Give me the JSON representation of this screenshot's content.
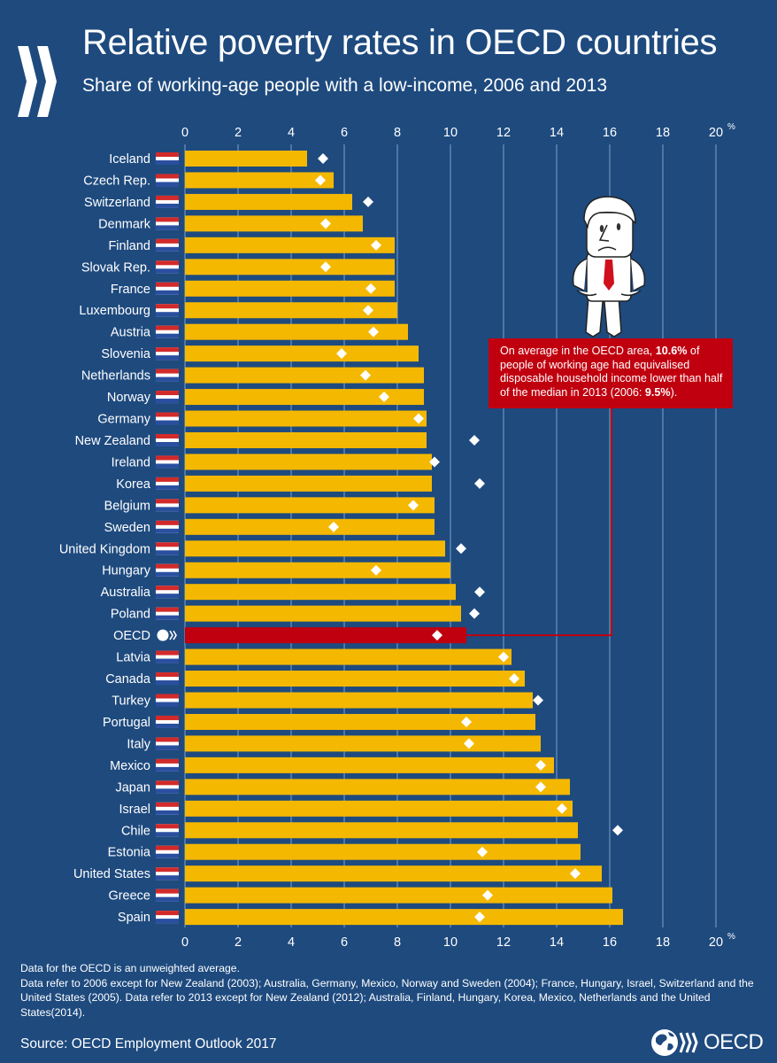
{
  "header": {
    "title": "Relative poverty rates in OECD countries",
    "subtitle": "Share of working-age people with a low-income, 2006 and 2013"
  },
  "colors": {
    "background": "#1e4a7e",
    "bar_2013": "#f5b800",
    "bar_oecd": "#c0000f",
    "marker_2006": "#ffffff",
    "gridline": "#7fa3cc",
    "annotation_bg": "#c0000f"
  },
  "annotation": {
    "part1": "On average in the OECD area, ",
    "bold1": "10.6%",
    "part2": " of people of working age had equivalised disposable household income lower than half of the median in 2013 (2006: ",
    "bold2": "9.5%",
    "part3": ")."
  },
  "footnotes": [
    "Data for the OECD is an unweighted average.",
    "Data refer to 2006 except for New Zealand (2003); Australia, Germany, Mexico, Norway and Sweden (2004); France, Hungary, Israel, Switzerland and the United States (2005). Data refer to 2013 except for New Zealand (2012); Australia, Finland, Hungary, Korea, Mexico, Netherlands and the United States(2014)."
  ],
  "source": "Source: OECD Employment Outlook 2017",
  "logo": {
    "word": "OECD",
    "icon": "oecd-globe-logo-icon"
  },
  "chart_data": {
    "type": "bar",
    "orientation": "horizontal",
    "title": "Relative poverty rates in OECD countries",
    "subtitle": "Share of working-age people with a low-income, 2006 and 2013",
    "xlabel": "",
    "x_unit": "%",
    "xlim": [
      0,
      20
    ],
    "xticks": [
      0,
      2,
      4,
      6,
      8,
      10,
      12,
      14,
      16,
      18,
      20
    ],
    "grid": true,
    "axis_labels_position": "top-and-bottom",
    "highlight_category": "OECD",
    "categories": [
      "Iceland",
      "Czech Rep.",
      "Switzerland",
      "Denmark",
      "Finland",
      "Slovak Rep.",
      "France",
      "Luxembourg",
      "Austria",
      "Slovenia",
      "Netherlands",
      "Norway",
      "Germany",
      "New Zealand",
      "Ireland",
      "Korea",
      "Belgium",
      "Sweden",
      "United Kingdom",
      "Hungary",
      "Australia",
      "Poland",
      "OECD",
      "Latvia",
      "Canada",
      "Turkey",
      "Portugal",
      "Italy",
      "Mexico",
      "Japan",
      "Israel",
      "Chile",
      "Estonia",
      "United States",
      "Greece",
      "Spain"
    ],
    "flag_icons": [
      "flag-iceland-icon",
      "flag-czech-icon",
      "flag-switzerland-icon",
      "flag-denmark-icon",
      "flag-finland-icon",
      "flag-slovakia-icon",
      "flag-france-icon",
      "flag-luxembourg-icon",
      "flag-austria-icon",
      "flag-slovenia-icon",
      "flag-netherlands-icon",
      "flag-norway-icon",
      "flag-germany-icon",
      "flag-new-zealand-icon",
      "flag-ireland-icon",
      "flag-korea-icon",
      "flag-belgium-icon",
      "flag-sweden-icon",
      "flag-uk-icon",
      "flag-hungary-icon",
      "flag-australia-icon",
      "flag-poland-icon",
      "oecd-logo-icon",
      "flag-latvia-icon",
      "flag-canada-icon",
      "flag-turkey-icon",
      "flag-portugal-icon",
      "flag-italy-icon",
      "flag-mexico-icon",
      "flag-japan-icon",
      "flag-israel-icon",
      "flag-chile-icon",
      "flag-estonia-icon",
      "flag-usa-icon",
      "flag-greece-icon",
      "flag-spain-icon"
    ],
    "series": [
      {
        "name": "2013",
        "mark": "bar",
        "values": [
          4.6,
          5.6,
          6.3,
          6.7,
          7.9,
          7.9,
          7.9,
          8.0,
          8.4,
          8.8,
          9.0,
          9.0,
          9.1,
          9.1,
          9.3,
          9.3,
          9.4,
          9.4,
          9.8,
          10.0,
          10.2,
          10.4,
          10.6,
          12.3,
          12.8,
          13.1,
          13.2,
          13.4,
          13.9,
          14.5,
          14.6,
          14.8,
          14.9,
          15.7,
          16.1,
          16.5
        ]
      },
      {
        "name": "2006",
        "mark": "diamond",
        "values": [
          5.2,
          5.1,
          6.9,
          5.3,
          7.2,
          5.3,
          7.0,
          6.9,
          7.1,
          5.9,
          6.8,
          7.5,
          8.8,
          10.9,
          9.4,
          11.1,
          8.6,
          5.6,
          10.4,
          7.2,
          11.1,
          10.9,
          9.5,
          12.0,
          12.4,
          13.3,
          10.6,
          10.7,
          13.4,
          13.4,
          14.2,
          16.3,
          11.2,
          14.7,
          11.4,
          11.1
        ]
      }
    ]
  }
}
